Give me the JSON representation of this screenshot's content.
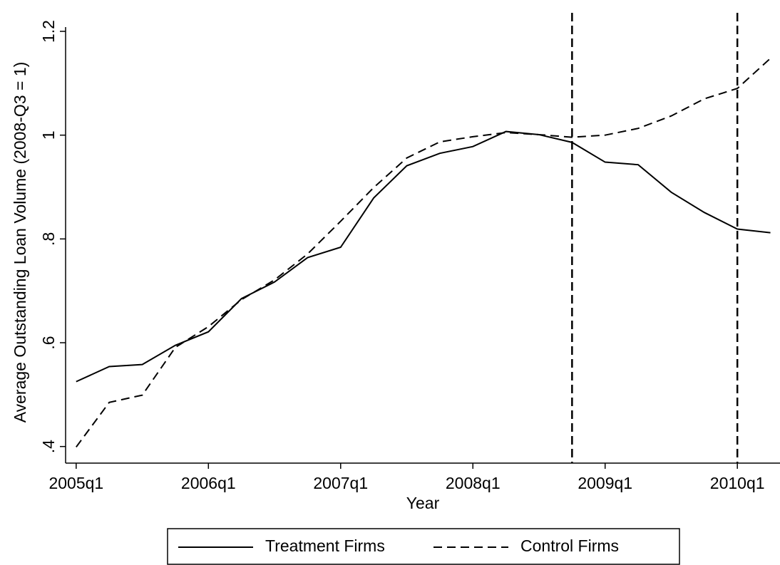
{
  "chart_data": {
    "type": "line",
    "x_label": "Year",
    "y_label": "Average Outstanding Loan Volume (2008-Q3 = 1)",
    "x": [
      180,
      181,
      182,
      183,
      184,
      185,
      186,
      187,
      188,
      189,
      190,
      191,
      192,
      193,
      194,
      195,
      196,
      197,
      198,
      199,
      200,
      201
    ],
    "xlim": [
      179.68,
      201.29
    ],
    "xticks": [
      {
        "value": 180,
        "label": "2005q1"
      },
      {
        "value": 184,
        "label": "2006q1"
      },
      {
        "value": 188,
        "label": "2007q1"
      },
      {
        "value": 192,
        "label": "2008q1"
      },
      {
        "value": 196,
        "label": "2009q1"
      },
      {
        "value": 200,
        "label": "2010q1"
      }
    ],
    "ylim": [
      0.368,
      1.2
    ],
    "yticks": [
      {
        "value": 0.4,
        "label": ".4"
      },
      {
        "value": 0.6,
        "label": ".6"
      },
      {
        "value": 0.8,
        "label": ".8"
      },
      1,
      1.2
    ],
    "xlines": [
      195,
      200
    ],
    "grid": false,
    "legend": "bottom",
    "series": [
      {
        "name": "Treatment Firms",
        "color": "#000000",
        "style": "solid",
        "values": [
          0.525,
          0.554,
          0.558,
          0.595,
          0.621,
          0.685,
          0.717,
          0.764,
          0.784,
          0.879,
          0.941,
          0.965,
          0.978,
          1.007,
          1.001,
          0.986,
          0.948,
          0.943,
          0.89,
          0.851,
          0.819,
          0.812
        ]
      },
      {
        "name": "Control Firms",
        "color": "#000000",
        "style": "dashed",
        "values": [
          0.399,
          0.485,
          0.499,
          0.591,
          0.631,
          0.683,
          0.721,
          0.771,
          0.834,
          0.899,
          0.956,
          0.987,
          0.997,
          1.005,
          1.001,
          0.996,
          1.0,
          1.013,
          1.037,
          1.07,
          1.09,
          1.148
        ]
      }
    ]
  }
}
